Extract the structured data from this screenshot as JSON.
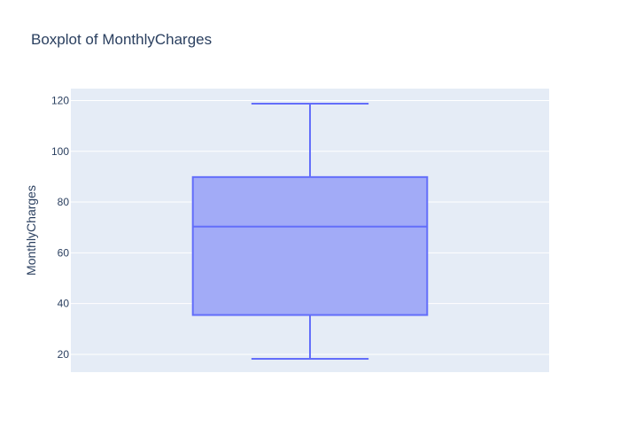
{
  "chart_data": {
    "type": "box",
    "title": "Boxplot of MonthlyCharges",
    "ylabel": "MonthlyCharges",
    "xlabel": "",
    "ylim": [
      13,
      124.7
    ],
    "yticks": [
      20,
      40,
      60,
      80,
      100,
      120
    ],
    "grid": true,
    "series": [
      {
        "min": 18.25,
        "q1": 35.5,
        "median": 70.35,
        "q3": 89.85,
        "max": 118.75
      }
    ],
    "colors": {
      "plot_background": "#e5ecf6",
      "gridline": "#ffffff",
      "box_fill": "#a2abf7",
      "box_line": "#636efa",
      "text": "#2a3f5f"
    }
  }
}
